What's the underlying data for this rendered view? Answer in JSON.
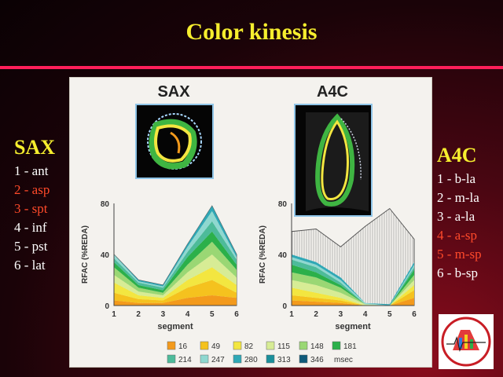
{
  "title": "Color kinesis",
  "sax_legend": {
    "heading": "SAX",
    "items": [
      {
        "label": "1 - ant",
        "color": "#ffffff"
      },
      {
        "label": "2 - asp",
        "color": "#ff4a2a"
      },
      {
        "label": "3 - spt",
        "color": "#ff4a2a"
      },
      {
        "label": "4 - inf",
        "color": "#ffffff"
      },
      {
        "label": "5 - pst",
        "color": "#ffffff"
      },
      {
        "label": "6 - lat",
        "color": "#ffffff"
      }
    ]
  },
  "a4c_legend": {
    "heading": "A4C",
    "items": [
      {
        "label": "1 - b-la",
        "color": "#ffffff"
      },
      {
        "label": "2 - m-la",
        "color": "#ffffff"
      },
      {
        "label": "3 - a-la",
        "color": "#ffffff"
      },
      {
        "label": "4 - a-sp",
        "color": "#ff4a2a"
      },
      {
        "label": "5 - m-sp",
        "color": "#ff4a2a"
      },
      {
        "label": "6 - b-sp",
        "color": "#ffffff"
      }
    ]
  },
  "chart_data": [
    {
      "type": "area",
      "title": "SAX",
      "xlabel": "segment",
      "ylabel": "RFAC (%REDA)",
      "categories": [
        1,
        2,
        3,
        4,
        5,
        6
      ],
      "ylim": [
        0,
        80
      ],
      "yticks": [
        0,
        40,
        80
      ],
      "envelope": [
        40,
        20,
        16,
        48,
        78,
        40
      ],
      "stack_boundaries": [
        {
          "values": [
            4,
            2,
            2,
            6,
            8,
            6
          ]
        },
        {
          "values": [
            10,
            5,
            4,
            14,
            20,
            10
          ]
        },
        {
          "values": [
            18,
            8,
            6,
            20,
            30,
            16
          ]
        },
        {
          "values": [
            24,
            11,
            8,
            26,
            40,
            22
          ]
        },
        {
          "values": [
            30,
            14,
            10,
            32,
            50,
            28
          ]
        },
        {
          "values": [
            34,
            16,
            12,
            38,
            58,
            32
          ]
        },
        {
          "values": [
            37,
            18,
            14,
            42,
            66,
            36
          ]
        },
        {
          "values": [
            40,
            19,
            15,
            46,
            74,
            38
          ]
        },
        {
          "values": [
            40,
            20,
            16,
            48,
            78,
            40
          ]
        }
      ]
    },
    {
      "type": "area",
      "title": "A4C",
      "xlabel": "segment",
      "ylabel": "RFAC (%REDA)",
      "categories": [
        1,
        2,
        3,
        4,
        5,
        6
      ],
      "ylim": [
        0,
        80
      ],
      "yticks": [
        0,
        40,
        80
      ],
      "envelope": [
        58,
        60,
        46,
        62,
        76,
        52
      ],
      "stack_boundaries": [
        {
          "values": [
            4,
            3,
            2,
            0,
            0,
            6
          ]
        },
        {
          "values": [
            8,
            6,
            4,
            0,
            0,
            12
          ]
        },
        {
          "values": [
            14,
            10,
            6,
            0,
            0,
            16
          ]
        },
        {
          "values": [
            20,
            16,
            10,
            1,
            0,
            20
          ]
        },
        {
          "values": [
            26,
            22,
            14,
            1,
            0,
            24
          ]
        },
        {
          "values": [
            32,
            26,
            16,
            1,
            0,
            28
          ]
        },
        {
          "values": [
            36,
            30,
            18,
            1,
            0,
            30
          ]
        },
        {
          "values": [
            38,
            32,
            20,
            2,
            0,
            32
          ]
        },
        {
          "values": [
            40,
            34,
            22,
            2,
            1,
            34
          ]
        }
      ]
    }
  ],
  "time_legend": {
    "unit": "msec",
    "items": [
      {
        "label": "16",
        "color": "#f39a1c"
      },
      {
        "label": "49",
        "color": "#f5c21e"
      },
      {
        "label": "82",
        "color": "#f3e640"
      },
      {
        "label": "115",
        "color": "#d7ec95"
      },
      {
        "label": "148",
        "color": "#9ad774"
      },
      {
        "label": "181",
        "color": "#2bb04a"
      },
      {
        "label": "214",
        "color": "#4dbb9a"
      },
      {
        "label": "247",
        "color": "#8fd8d0"
      },
      {
        "label": "280",
        "color": "#2fa8b6"
      },
      {
        "label": "313",
        "color": "#1a8f9b"
      },
      {
        "label": "346",
        "color": "#0f5a7a"
      }
    ]
  }
}
